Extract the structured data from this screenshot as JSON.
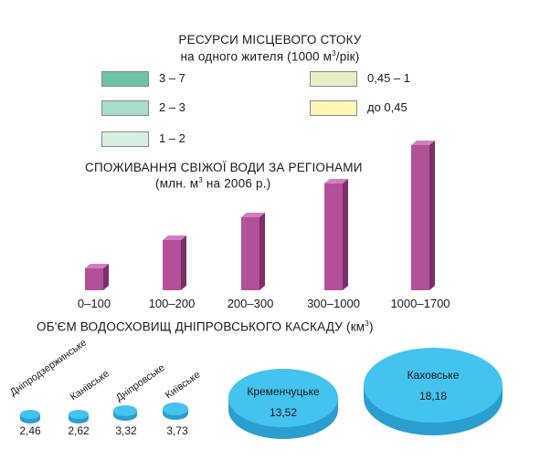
{
  "legend": {
    "title_line1": "РЕСУРСИ МІСЦЕВОГО СТОКУ",
    "title_line2_pre": "на одного жителя (1000 м",
    "title_line2_sup": "3",
    "title_line2_post": "/рік)",
    "items": [
      {
        "label": "3 – 7",
        "color": "#6cc5a0"
      },
      {
        "label": "2 – 3",
        "color": "#a9dccb"
      },
      {
        "label": "1 – 2",
        "color": "#d6efe0"
      },
      {
        "label": "0,45 – 1",
        "color": "#e3f0c6"
      },
      {
        "label": "до 0,45",
        "color": "#fdf7b2"
      }
    ]
  },
  "chart_data": [
    {
      "type": "bar",
      "title": "СПОЖИВАННЯ СВІЖОЇ ВОДИ ЗА РЕГІОНАМИ",
      "subtitle_pre": "(млн. м",
      "subtitle_sup": "3",
      "subtitle_post": " на 2006 р.)",
      "categories": [
        "0–100",
        "100–200",
        "200–300",
        "300–1000",
        "1000–1700"
      ],
      "values": [
        100,
        200,
        300,
        1000,
        1700
      ],
      "bar_color": "#b2509a"
    },
    {
      "type": "bubble",
      "title_pre": "ОБ'ЄМ ВОДОСХОВИЩ ДНІПРОВСЬКОГО КАСКАДУ (км",
      "title_sup": "3",
      "title_post": ")",
      "series": [
        {
          "name": "Дніпродзержинське",
          "value": "2,46"
        },
        {
          "name": "Канівське",
          "value": "2,62"
        },
        {
          "name": "Дніпровське",
          "value": "3,32"
        },
        {
          "name": "Київське",
          "value": "3,73"
        },
        {
          "name": "Кременчуцьке",
          "value": "13,52"
        },
        {
          "name": "Каховське",
          "value": "18,18"
        }
      ],
      "disc_color": "#44c3ee"
    }
  ]
}
